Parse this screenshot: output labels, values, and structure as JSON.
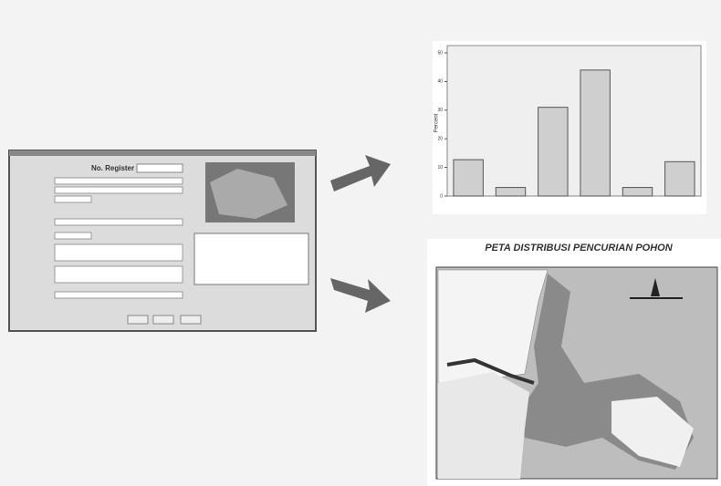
{
  "form": {
    "register_label": "No. Register"
  },
  "chart_data": {
    "type": "bar",
    "ylabel": "Percent",
    "categories": [
      null,
      null,
      null,
      null,
      null,
      null
    ],
    "values": [
      12.7,
      3,
      31,
      44,
      3,
      12
    ],
    "color": "#cfcfcf",
    "ylim": [
      0,
      50
    ],
    "yticks": [
      0,
      10,
      20,
      30,
      40,
      50
    ]
  },
  "map": {
    "title": "PETA DISTRIBUSI PENCURIAN POHON"
  }
}
